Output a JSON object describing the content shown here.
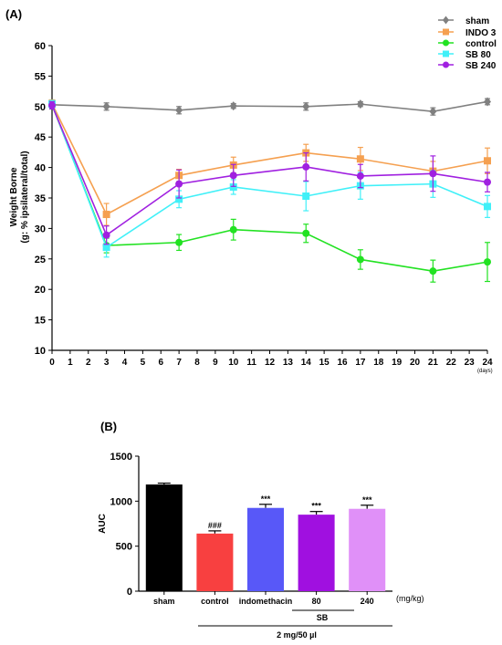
{
  "chart_data": [
    {
      "type": "line",
      "panel_label": "(A)",
      "ylabel_line1": "Weight Borne",
      "ylabel_line2": "(g: % ipsilateral/total)",
      "x_unit": "(days)",
      "xlim": [
        0,
        24
      ],
      "ylim": [
        10,
        60
      ],
      "xticks": [
        0,
        1,
        2,
        3,
        4,
        5,
        6,
        7,
        8,
        9,
        10,
        11,
        12,
        13,
        14,
        15,
        16,
        17,
        18,
        19,
        20,
        21,
        22,
        23,
        24
      ],
      "yticks": [
        10,
        15,
        20,
        25,
        30,
        35,
        40,
        45,
        50,
        55,
        60
      ],
      "legend_position": "top-right",
      "grid": false,
      "series": [
        {
          "name": "sham",
          "color": "#808080",
          "marker": "diamond",
          "x": [
            0,
            3,
            7,
            10,
            14,
            17,
            21,
            24
          ],
          "y": [
            50.3,
            50.0,
            49.4,
            50.1,
            50.0,
            50.4,
            49.2,
            50.8
          ],
          "err": [
            0.5,
            0.6,
            0.6,
            0.4,
            0.6,
            0.4,
            0.6,
            0.5
          ]
        },
        {
          "name": "INDO 3",
          "color": "#f5a050",
          "marker": "square",
          "x": [
            0,
            3,
            7,
            10,
            14,
            17,
            21,
            24
          ],
          "y": [
            50.5,
            32.3,
            38.7,
            40.4,
            42.4,
            41.4,
            39.4,
            41.1
          ],
          "err": [
            0.6,
            1.8,
            1.0,
            1.3,
            1.4,
            1.9,
            1.6,
            2.1
          ]
        },
        {
          "name": "control",
          "color": "#22e222",
          "marker": "circle",
          "x": [
            0,
            3,
            7,
            10,
            14,
            17,
            21,
            24
          ],
          "y": [
            50.3,
            27.2,
            27.7,
            29.8,
            29.2,
            24.9,
            23.0,
            24.5
          ],
          "err": [
            0.5,
            1.2,
            1.3,
            1.7,
            1.5,
            1.6,
            1.8,
            3.2
          ]
        },
        {
          "name": "SB 80",
          "color": "#40f0f8",
          "marker": "square",
          "x": [
            0,
            3,
            7,
            10,
            14,
            17,
            21,
            24
          ],
          "y": [
            50.4,
            26.9,
            34.8,
            36.8,
            35.3,
            37.0,
            37.3,
            33.6
          ],
          "err": [
            0.6,
            1.6,
            1.4,
            1.2,
            2.4,
            2.2,
            2.2,
            1.8
          ]
        },
        {
          "name": "SB 240",
          "color": "#a020e0",
          "marker": "circle",
          "x": [
            0,
            3,
            7,
            10,
            14,
            17,
            21,
            24
          ],
          "y": [
            50.2,
            28.9,
            37.3,
            38.7,
            40.1,
            38.6,
            39.0,
            37.6
          ],
          "err": [
            0.6,
            1.5,
            2.3,
            1.8,
            2.3,
            1.9,
            2.9,
            1.6
          ]
        }
      ]
    },
    {
      "type": "bar",
      "panel_label": "(B)",
      "ylabel": "AUC",
      "ylim": [
        0,
        1500
      ],
      "yticks": [
        0,
        500,
        1000,
        1500
      ],
      "categories": [
        "sham",
        "control",
        "indomethacin",
        "80",
        "240"
      ],
      "values": [
        1185,
        640,
        925,
        850,
        915
      ],
      "errors": [
        15,
        30,
        40,
        35,
        40
      ],
      "colors": [
        "#000000",
        "#f84040",
        "#5858f8",
        "#a010e0",
        "#e090f8"
      ],
      "annotations": [
        "",
        "###",
        "***",
        "***",
        "***"
      ],
      "unit_label": "(mg/kg)",
      "group_label": "SB",
      "dose_label": "2 mg/50 µl"
    }
  ]
}
